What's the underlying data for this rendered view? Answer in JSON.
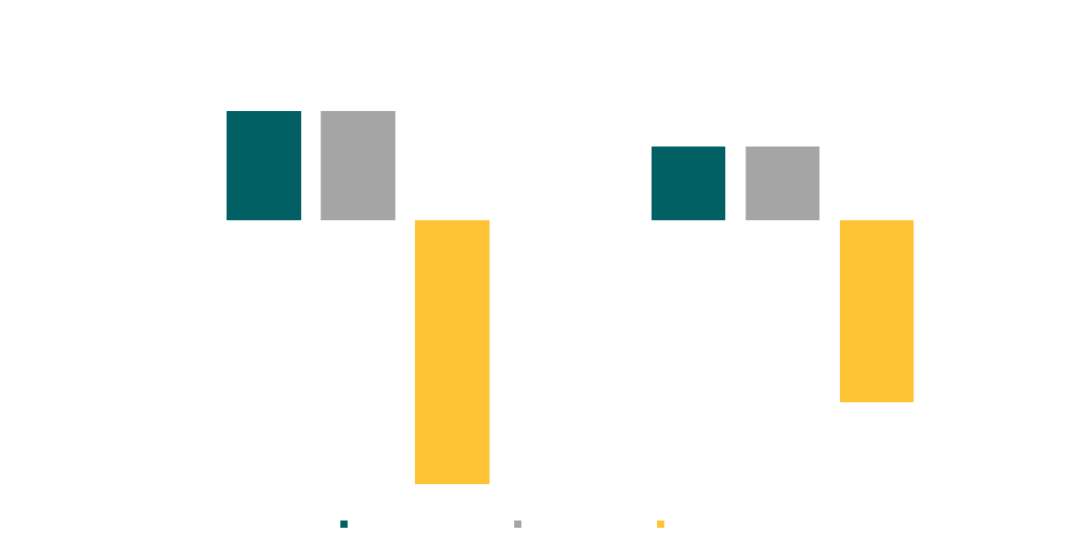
{
  "chart_data": {
    "type": "bar",
    "categories": [
      "",
      ""
    ],
    "series": [
      {
        "values": [
          60,
          40.5
        ],
        "color": "#006064"
      },
      {
        "values": [
          60,
          40.5
        ],
        "color": "#a5a5a5"
      },
      {
        "values": [
          -145,
          -100
        ],
        "color": "#ffc336"
      }
    ],
    "title": "",
    "xlabel": "",
    "ylabel": "",
    "ylim": [
      -160,
      90
    ],
    "grid": false,
    "legend": "bottom"
  }
}
